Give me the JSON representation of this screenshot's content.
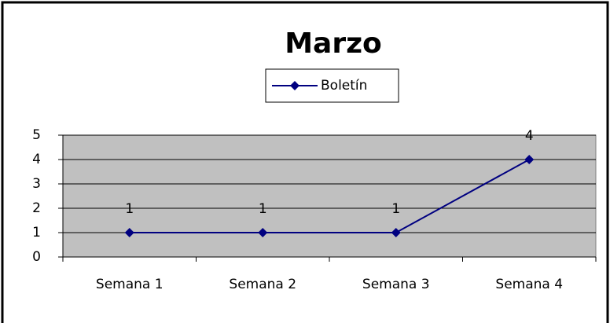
{
  "chart_data": {
    "type": "line",
    "title": "Marzo",
    "categories": [
      "Semana 1",
      "Semana 2",
      "Semana 3",
      "Semana 4"
    ],
    "series": [
      {
        "name": "Boletín",
        "color": "#000080",
        "values": [
          1,
          1,
          1,
          4
        ]
      }
    ],
    "ylim": [
      0,
      5
    ],
    "yticks": [
      0,
      1,
      2,
      3,
      4,
      5
    ],
    "grid": true,
    "legend": "top",
    "plot_background": "#c0c0c0"
  }
}
